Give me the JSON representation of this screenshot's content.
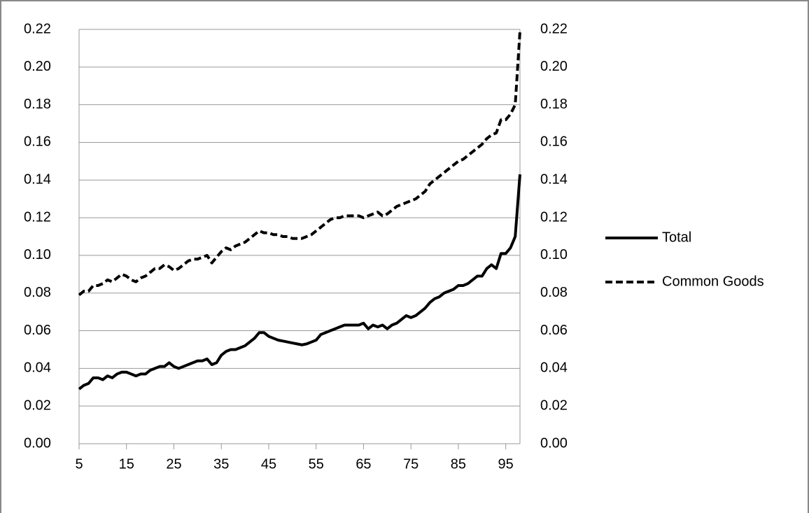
{
  "chart_data": {
    "type": "line",
    "x": [
      5,
      6,
      7,
      8,
      9,
      10,
      11,
      12,
      13,
      14,
      15,
      16,
      17,
      18,
      19,
      20,
      21,
      22,
      23,
      24,
      25,
      26,
      27,
      28,
      29,
      30,
      31,
      32,
      33,
      34,
      35,
      36,
      37,
      38,
      39,
      40,
      41,
      42,
      43,
      44,
      45,
      46,
      47,
      48,
      49,
      50,
      51,
      52,
      53,
      54,
      55,
      56,
      57,
      58,
      59,
      60,
      61,
      62,
      63,
      64,
      65,
      66,
      67,
      68,
      69,
      70,
      71,
      72,
      73,
      74,
      75,
      76,
      77,
      78,
      79,
      80,
      81,
      82,
      83,
      84,
      85,
      86,
      87,
      88,
      89,
      90,
      91,
      92,
      93,
      94,
      95,
      96,
      97,
      98
    ],
    "series": [
      {
        "name": "Total",
        "color": "#000000",
        "dash": "solid",
        "values": [
          0.029,
          0.031,
          0.032,
          0.035,
          0.035,
          0.034,
          0.036,
          0.035,
          0.037,
          0.038,
          0.038,
          0.037,
          0.036,
          0.037,
          0.037,
          0.039,
          0.04,
          0.041,
          0.041,
          0.043,
          0.041,
          0.04,
          0.041,
          0.042,
          0.043,
          0.044,
          0.044,
          0.045,
          0.042,
          0.043,
          0.047,
          0.049,
          0.05,
          0.05,
          0.051,
          0.052,
          0.054,
          0.056,
          0.059,
          0.059,
          0.057,
          0.056,
          0.055,
          0.0545,
          0.054,
          0.0535,
          0.053,
          0.0525,
          0.053,
          0.054,
          0.055,
          0.058,
          0.059,
          0.06,
          0.061,
          0.062,
          0.063,
          0.063,
          0.063,
          0.063,
          0.064,
          0.061,
          0.063,
          0.062,
          0.063,
          0.061,
          0.063,
          0.064,
          0.066,
          0.068,
          0.067,
          0.068,
          0.07,
          0.072,
          0.075,
          0.077,
          0.078,
          0.08,
          0.081,
          0.082,
          0.084,
          0.084,
          0.085,
          0.087,
          0.089,
          0.089,
          0.093,
          0.095,
          0.093,
          0.101,
          0.101,
          0.104,
          0.11,
          0.143
        ]
      },
      {
        "name": "Common Goods",
        "color": "#000000",
        "dash": "dashed",
        "values": [
          0.079,
          0.081,
          0.081,
          0.084,
          0.084,
          0.085,
          0.087,
          0.086,
          0.088,
          0.09,
          0.089,
          0.087,
          0.086,
          0.088,
          0.089,
          0.091,
          0.093,
          0.093,
          0.095,
          0.094,
          0.092,
          0.093,
          0.095,
          0.097,
          0.098,
          0.098,
          0.099,
          0.1,
          0.096,
          0.099,
          0.102,
          0.104,
          0.103,
          0.105,
          0.106,
          0.107,
          0.109,
          0.111,
          0.113,
          0.112,
          0.112,
          0.111,
          0.111,
          0.11,
          0.11,
          0.109,
          0.109,
          0.109,
          0.11,
          0.111,
          0.113,
          0.115,
          0.117,
          0.119,
          0.12,
          0.12,
          0.121,
          0.121,
          0.121,
          0.121,
          0.12,
          0.121,
          0.122,
          0.123,
          0.121,
          0.122,
          0.124,
          0.126,
          0.127,
          0.128,
          0.129,
          0.13,
          0.132,
          0.134,
          0.138,
          0.14,
          0.142,
          0.144,
          0.146,
          0.148,
          0.15,
          0.151,
          0.153,
          0.155,
          0.157,
          0.159,
          0.162,
          0.164,
          0.165,
          0.172,
          0.172,
          0.175,
          0.18,
          0.219
        ]
      }
    ],
    "xlim": [
      5,
      98
    ],
    "xticks": [
      5,
      15,
      25,
      35,
      45,
      55,
      65,
      75,
      85,
      95
    ],
    "ylim": [
      0,
      0.22
    ],
    "yticks": [
      {
        "value": 0,
        "label": "0.00"
      },
      {
        "value": 0.02,
        "label": "0.02"
      },
      {
        "value": 0.04,
        "label": "0.04"
      },
      {
        "value": 0.06,
        "label": "0.06"
      },
      {
        "value": 0.08,
        "label": "0.08"
      },
      {
        "value": 0.1,
        "label": "0.10"
      },
      {
        "value": 0.12,
        "label": "0.12"
      },
      {
        "value": 0.14,
        "label": "0.14"
      },
      {
        "value": 0.16,
        "label": "0.16"
      },
      {
        "value": 0.18,
        "label": "0.18"
      },
      {
        "value": 0.2,
        "label": "0.20"
      },
      {
        "value": 0.22,
        "label": "0.22"
      }
    ],
    "y2lim": [
      0,
      0.22
    ],
    "y2ticks": [
      {
        "value": 0,
        "label": "0.00"
      },
      {
        "value": 0.02,
        "label": "0.02"
      },
      {
        "value": 0.04,
        "label": "0.04"
      },
      {
        "value": 0.06,
        "label": "0.06"
      },
      {
        "value": 0.08,
        "label": "0.08"
      },
      {
        "value": 0.1,
        "label": "0.10"
      },
      {
        "value": 0.12,
        "label": "0.12"
      },
      {
        "value": 0.14,
        "label": "0.14"
      },
      {
        "value": 0.16,
        "label": "0.16"
      },
      {
        "value": 0.18,
        "label": "0.18"
      },
      {
        "value": 0.2,
        "label": "0.20"
      },
      {
        "value": 0.22,
        "label": "0.22"
      }
    ],
    "grid": true,
    "legend": "right"
  }
}
